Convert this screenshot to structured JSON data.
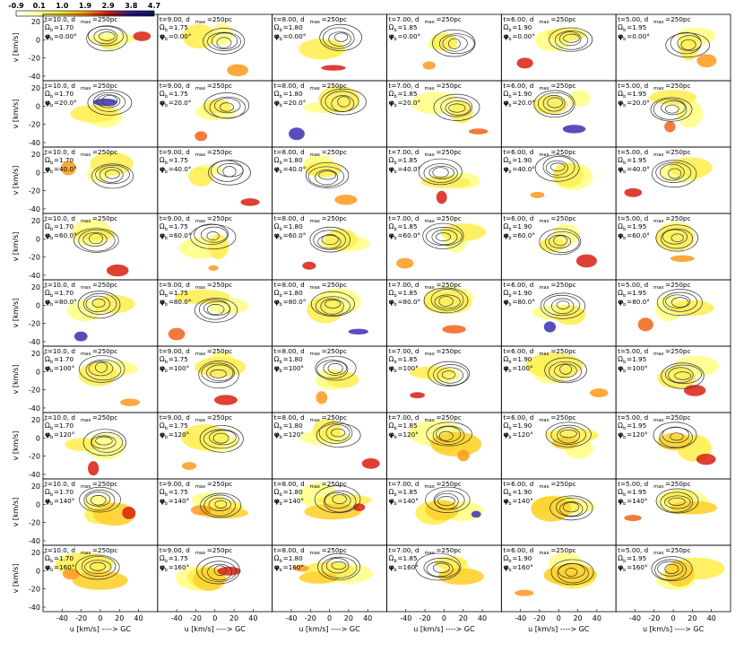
{
  "colorbar": {
    "tick_labels": [
      "-0.9",
      "0.1",
      "1.0",
      "1.9",
      "2.9",
      "3.8",
      "4.7"
    ],
    "colors": [
      "#ffffff",
      "#ffff99",
      "#ffe23a",
      "#ff9a1a",
      "#d81e10",
      "#2a1f9a",
      "#101a55"
    ]
  },
  "chart_data": {
    "type": "heatmap",
    "panel_grid": {
      "rows": 9,
      "cols": 6
    },
    "columns": [
      {
        "t": "10.0",
        "omega": "1.70"
      },
      {
        "t": "9.00",
        "omega": "1.75"
      },
      {
        "t": "8.00",
        "omega": "1.80"
      },
      {
        "t": "7.00",
        "omega": "1.85"
      },
      {
        "t": "6.00",
        "omega": "1.90"
      },
      {
        "t": "5.00",
        "omega": "1.95"
      }
    ],
    "rows_phi": [
      "0.00",
      "20.0",
      "40.0",
      "60.0",
      "80.0",
      "100",
      "120",
      "140",
      "160"
    ],
    "d_max": "250pc",
    "xlabel": "u [km/s] ----> GC",
    "ylabel": "v [km/s]",
    "x_ticks": [
      "-40",
      "-20",
      "0",
      "20",
      "40"
    ],
    "y_ticks": [
      "20",
      "0",
      "-20",
      "-40"
    ],
    "xlim": [
      -60,
      60
    ],
    "ylim": [
      -45,
      28
    ],
    "colorbar_range": [
      -0.9,
      4.7
    ],
    "contours": "black contour lines overlaid on colour map"
  }
}
